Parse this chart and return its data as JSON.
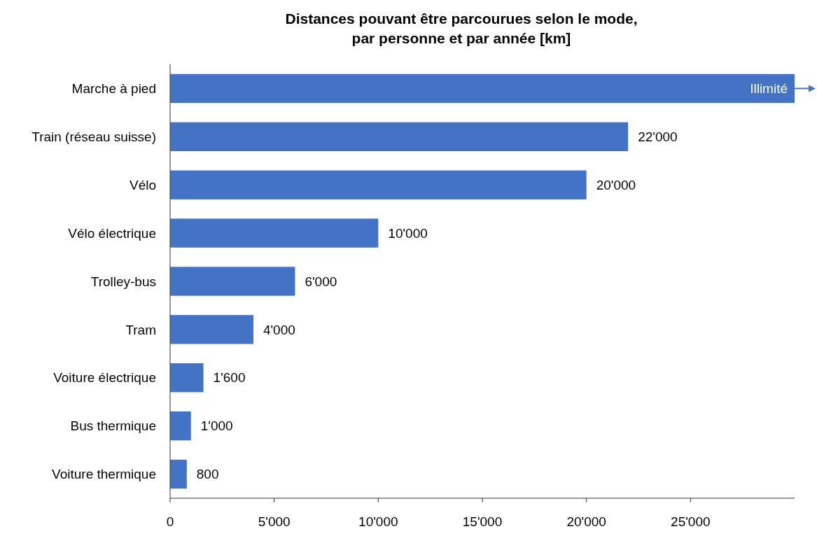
{
  "chart_data": {
    "type": "bar",
    "orientation": "horizontal",
    "title": "Distances pouvant être parcourues selon le mode,\npar personne et par année [km]",
    "categories": [
      "Marche à pied",
      "Train (réseau suisse)",
      "Vélo",
      "Vélo électrique",
      "Trolley-bus",
      "Tram",
      "Voiture électrique",
      "Bus thermique",
      "Voiture thermique"
    ],
    "values": [
      30000,
      22000,
      20000,
      10000,
      6000,
      4000,
      1600,
      1000,
      800
    ],
    "value_labels": [
      "Illimité",
      "22'000",
      "20'000",
      "10'000",
      "6'000",
      "4'000",
      "1'600",
      "1'000",
      "800"
    ],
    "color": "#4472c4",
    "xlim": [
      0,
      30000
    ],
    "xticks": [
      0,
      {
        "value": 5000,
        "label": "5'000"
      },
      {
        "value": 10000,
        "label": "10'000"
      },
      {
        "value": 15000,
        "label": "15'000"
      },
      {
        "value": 20000,
        "label": "20'000"
      },
      {
        "value": 25000,
        "label": "25'000"
      }
    ],
    "grid": false
  }
}
